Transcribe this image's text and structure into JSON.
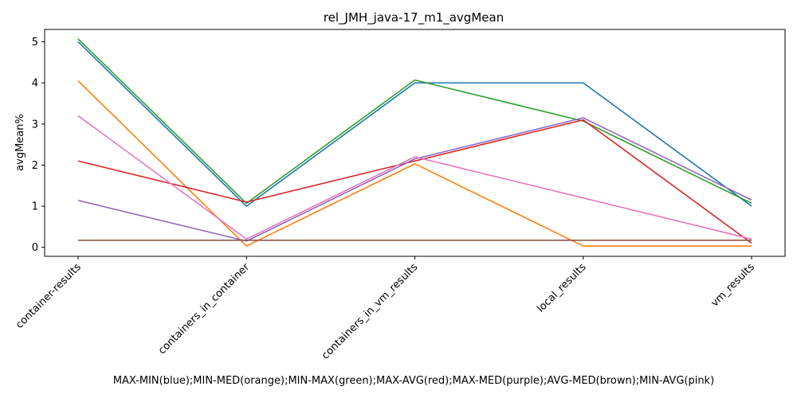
{
  "chart_data": {
    "type": "line",
    "title": "rel_JMH_java-17_m1_avgMean",
    "xlabel": "MAX-MIN(blue);MIN-MED(orange);MIN-MAX(green);MAX-AVG(red);MAX-MED(purple);AVG-MED(brown);MIN-AVG(pink)",
    "ylabel": "avgMean%",
    "categories": [
      "container-results",
      "containers_in_container",
      "containers_in_vm_results",
      "local_results",
      "vm_results"
    ],
    "ylim": [
      -0.22,
      5.3
    ],
    "yticks": [
      0,
      1,
      2,
      3,
      4,
      5
    ],
    "grid": false,
    "series": [
      {
        "name": "MAX-MIN",
        "color": "#1f77b4",
        "values": [
          5.0,
          1.0,
          4.0,
          4.0,
          1.0
        ]
      },
      {
        "name": "MIN-MED",
        "color": "#ff7f0e",
        "values": [
          4.05,
          0.03,
          2.03,
          0.03,
          0.03
        ]
      },
      {
        "name": "MIN-MAX",
        "color": "#2ca02c",
        "values": [
          5.07,
          1.07,
          4.07,
          3.07,
          1.07
        ]
      },
      {
        "name": "MAX-AVG",
        "color": "#d62728",
        "values": [
          2.1,
          1.1,
          2.1,
          3.1,
          0.1
        ]
      },
      {
        "name": "MAX-MED",
        "color": "#9467bd",
        "values": [
          1.14,
          0.15,
          2.15,
          3.15,
          1.15
        ]
      },
      {
        "name": "AVG-MED",
        "color": "#8c564b",
        "values": [
          0.17,
          0.17,
          0.17,
          0.17,
          0.17
        ]
      },
      {
        "name": "MIN-AVG",
        "color": "#e377c2",
        "values": [
          3.2,
          0.2,
          2.2,
          1.2,
          0.2
        ]
      }
    ]
  }
}
